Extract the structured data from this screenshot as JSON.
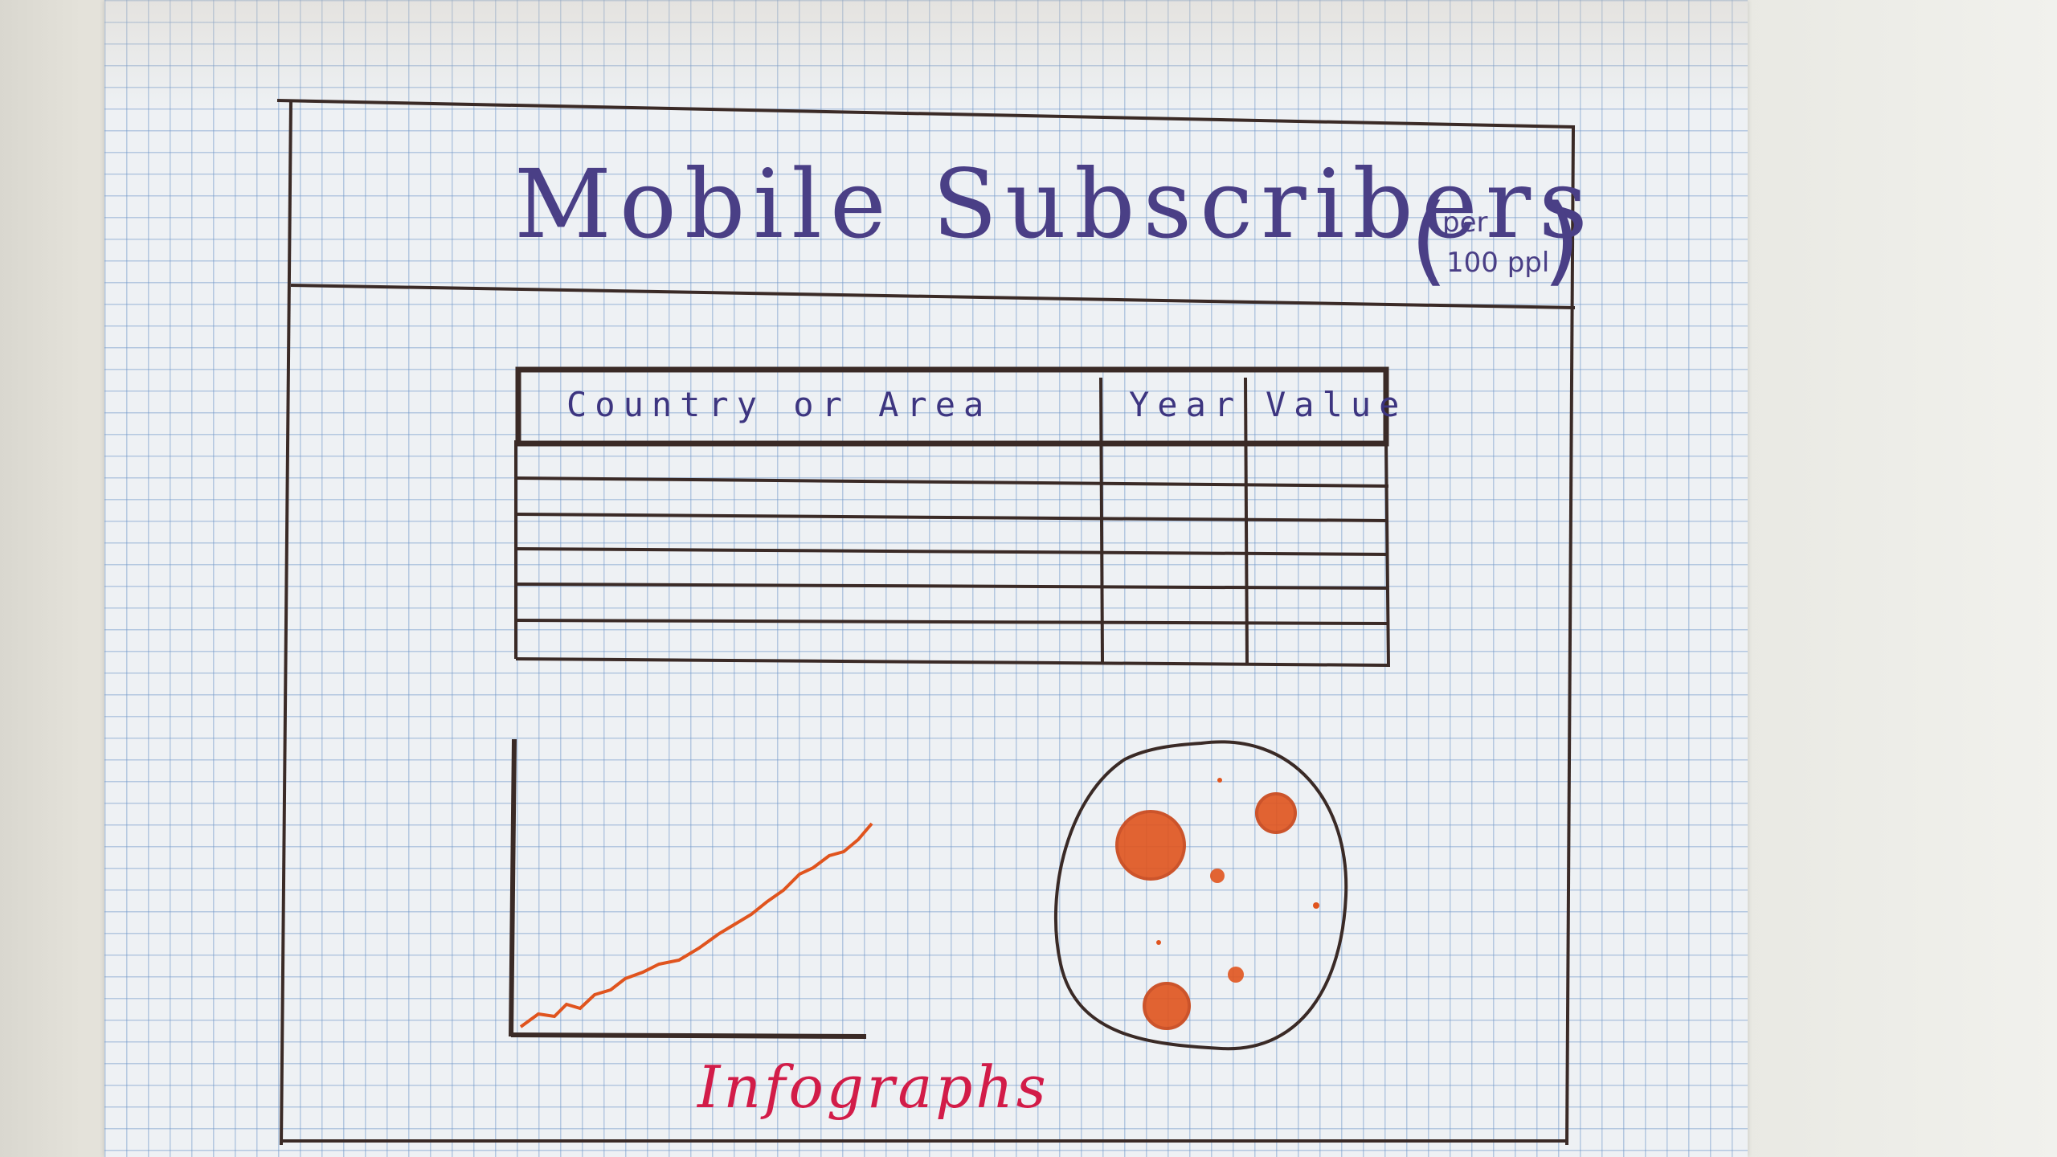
{
  "title": "Mobile Subscribers",
  "title_unit_top": "per",
  "title_unit_bottom": "100 ppl",
  "table": {
    "columns": [
      "Country or Area",
      "Year",
      "Value"
    ],
    "empty_rows": 6
  },
  "infographics_label": "Infographs",
  "colors": {
    "ink_purple": "#4a3f86",
    "ink_dark": "#3a2a26",
    "orange": "#e0541e",
    "red_caption": "#d21c48"
  }
}
